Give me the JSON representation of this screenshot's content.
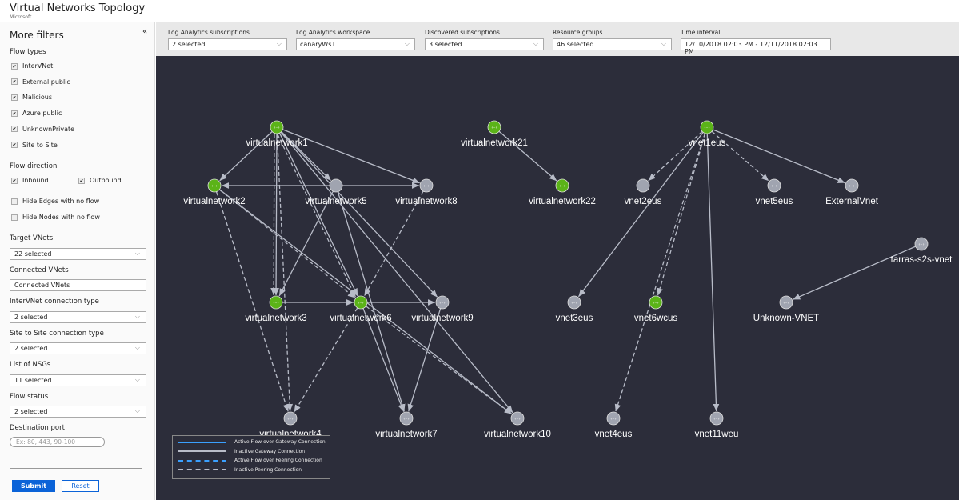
{
  "header": {
    "title": "Virtual Networks Topology",
    "subtitle": "Microsoft"
  },
  "sidebar": {
    "title": "More filters",
    "collapse_icon": "double-chevron-left",
    "flow_types_label": "Flow types",
    "flow_types": [
      {
        "label": "InterVNet",
        "checked": true
      },
      {
        "label": "External public",
        "checked": true
      },
      {
        "label": "Malicious",
        "checked": true
      },
      {
        "label": "Azure public",
        "checked": true
      },
      {
        "label": "UnknownPrivate",
        "checked": true
      },
      {
        "label": "Site to Site",
        "checked": true
      }
    ],
    "flow_direction_label": "Flow direction",
    "inbound": {
      "label": "Inbound",
      "checked": true
    },
    "outbound": {
      "label": "Outbound",
      "checked": true
    },
    "hide_edges": {
      "label": "Hide Edges with no flow",
      "checked": false
    },
    "hide_nodes": {
      "label": "Hide Nodes with no flow",
      "checked": false
    },
    "target_vnets": {
      "label": "Target VNets",
      "value": "22 selected"
    },
    "connected_vnets": {
      "label": "Connected VNets",
      "value": "Connected VNets"
    },
    "intervnet_type": {
      "label": "InterVNet connection type",
      "value": "2 selected"
    },
    "s2s_type": {
      "label": "Site to Site connection type",
      "value": "2 selected"
    },
    "nsgs": {
      "label": "List of NSGs",
      "value": "11 selected"
    },
    "flow_status": {
      "label": "Flow status",
      "value": "2 selected"
    },
    "dest_port": {
      "label": "Destination port",
      "placeholder": "Ex: 80, 443, 90-100"
    },
    "submit": "Submit",
    "reset": "Reset"
  },
  "filters": [
    {
      "label": "Log Analytics subscriptions",
      "value": "2 selected"
    },
    {
      "label": "Log Analytics workspace",
      "value": "canaryWs1"
    },
    {
      "label": "Discovered subscriptions",
      "value": "3 selected"
    },
    {
      "label": "Resource groups",
      "value": "46 selected"
    },
    {
      "label": "Time interval",
      "value": "12/10/2018 02:03 PM - 12/11/2018 02:03 PM"
    }
  ],
  "colors": {
    "active": "#5bb318",
    "inactive": "#a0a4b0",
    "active_edge": "#3aa0ff",
    "inactive_edge": "#b8bcc8",
    "canvas": "#2c2d3a"
  },
  "legend": [
    {
      "label": "Active Flow over Gateway Connection",
      "style": "solid",
      "active": true
    },
    {
      "label": "Inactive Gateway Connection",
      "style": "solid",
      "active": false
    },
    {
      "label": "Active Flow over Peering Connection",
      "style": "dashed",
      "active": true
    },
    {
      "label": "Inactive Peering Connection",
      "style": "dashed",
      "active": false
    }
  ],
  "nodes": [
    {
      "id": "vn1",
      "name": "virtualnetwork1",
      "active": true
    },
    {
      "id": "vn21",
      "name": "virtualnetwork21",
      "active": true
    },
    {
      "id": "v1eus",
      "name": "vnet1eus",
      "active": true
    },
    {
      "id": "vn2",
      "name": "virtualnetwork2",
      "active": true
    },
    {
      "id": "vn5",
      "name": "virtualnetwork5",
      "active": false
    },
    {
      "id": "vn8",
      "name": "virtualnetwork8",
      "active": false
    },
    {
      "id": "vn22",
      "name": "virtualnetwork22",
      "active": true
    },
    {
      "id": "v2eus",
      "name": "vnet2eus",
      "active": false
    },
    {
      "id": "v5eus",
      "name": "vnet5eus",
      "active": false
    },
    {
      "id": "ext",
      "name": "ExternalVnet",
      "active": false
    },
    {
      "id": "tarras",
      "name": "tarras-s2s-vnet",
      "active": false
    },
    {
      "id": "vn3",
      "name": "virtualnetwork3",
      "active": true
    },
    {
      "id": "vn6",
      "name": "virtualnetwork6",
      "active": true
    },
    {
      "id": "vn9",
      "name": "virtualnetwork9",
      "active": false
    },
    {
      "id": "v3eus",
      "name": "vnet3eus",
      "active": false
    },
    {
      "id": "v6wcus",
      "name": "vnet6wcus",
      "active": true
    },
    {
      "id": "unk",
      "name": "Unknown-VNET",
      "active": false
    },
    {
      "id": "vn4",
      "name": "virtualnetwork4",
      "active": false
    },
    {
      "id": "vn7",
      "name": "virtualnetwork7",
      "active": false
    },
    {
      "id": "vn10",
      "name": "virtualnetwork10",
      "active": false
    },
    {
      "id": "v4eus",
      "name": "vnet4eus",
      "active": false
    },
    {
      "id": "v11weu",
      "name": "vnet11weu",
      "active": false
    }
  ],
  "edges": [
    {
      "from": "vn1",
      "to": "vn2",
      "style": "solid"
    },
    {
      "from": "vn1",
      "to": "vn5",
      "style": "solid"
    },
    {
      "from": "vn1",
      "to": "vn8",
      "style": "solid"
    },
    {
      "from": "vn1",
      "to": "vn3",
      "style": "solid"
    },
    {
      "from": "vn1",
      "to": "vn3",
      "style": "dashed"
    },
    {
      "from": "vn1",
      "to": "vn6",
      "style": "solid"
    },
    {
      "from": "vn1",
      "to": "vn9",
      "style": "solid"
    },
    {
      "from": "vn1",
      "to": "vn10",
      "style": "solid"
    },
    {
      "from": "vn1",
      "to": "vn4",
      "style": "dashed"
    },
    {
      "from": "vn1",
      "to": "vn6",
      "style": "dashed"
    },
    {
      "from": "vn5",
      "to": "vn2",
      "style": "solid"
    },
    {
      "from": "vn5",
      "to": "vn8",
      "style": "solid"
    },
    {
      "from": "vn2",
      "to": "vn6",
      "style": "dashed"
    },
    {
      "from": "vn2",
      "to": "vn4",
      "style": "dashed"
    },
    {
      "from": "vn2",
      "to": "vn10",
      "style": "solid"
    },
    {
      "from": "vn5",
      "to": "vn3",
      "style": "solid"
    },
    {
      "from": "vn5",
      "to": "vn7",
      "style": "solid"
    },
    {
      "from": "vn8",
      "to": "vn6",
      "style": "dashed"
    },
    {
      "from": "vn3",
      "to": "vn6",
      "style": "solid"
    },
    {
      "from": "vn6",
      "to": "vn9",
      "style": "solid"
    },
    {
      "from": "vn6",
      "to": "vn4",
      "style": "dashed"
    },
    {
      "from": "vn6",
      "to": "vn7",
      "style": "solid"
    },
    {
      "from": "vn6",
      "to": "vn10",
      "style": "dashed"
    },
    {
      "from": "vn9",
      "to": "vn7",
      "style": "solid"
    },
    {
      "from": "vn21",
      "to": "vn22",
      "style": "solid"
    },
    {
      "from": "v1eus",
      "to": "v2eus",
      "style": "dashed"
    },
    {
      "from": "v1eus",
      "to": "v5eus",
      "style": "dashed"
    },
    {
      "from": "v1eus",
      "to": "ext",
      "style": "solid"
    },
    {
      "from": "v1eus",
      "to": "v3eus",
      "style": "solid"
    },
    {
      "from": "v1eus",
      "to": "v6wcus",
      "style": "dashed"
    },
    {
      "from": "v1eus",
      "to": "v4eus",
      "style": "dashed"
    },
    {
      "from": "v1eus",
      "to": "v11weu",
      "style": "solid"
    },
    {
      "from": "tarras",
      "to": "unk",
      "style": "solid"
    }
  ]
}
